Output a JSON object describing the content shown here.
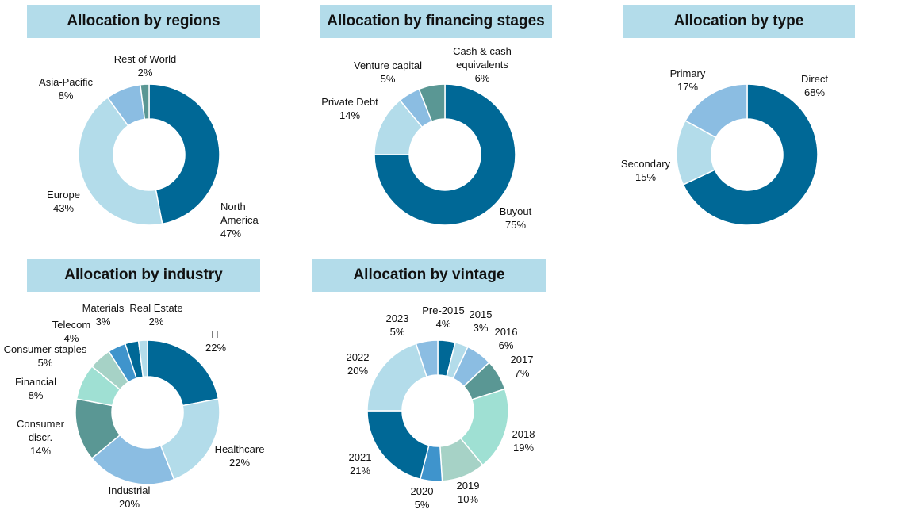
{
  "colors": {
    "dark_blue": "#006896",
    "light_blue": "#b3dcea",
    "mid_blue": "#8bbde2",
    "teal": "#5a9794",
    "mint": "#9fe0d3",
    "sage": "#a6d2c6",
    "bright_blue": "#3f94cc",
    "title_bg": "#b3dcea"
  },
  "chart_data": [
    {
      "type": "pie",
      "title": "Allocation by regions",
      "slices": [
        {
          "name": "North America",
          "lines": [
            "North",
            "America"
          ],
          "value": 47,
          "label": "47%",
          "color": "#006896"
        },
        {
          "name": "Europe",
          "lines": [
            "Europe"
          ],
          "value": 43,
          "label": "43%",
          "color": "#b3dcea"
        },
        {
          "name": "Asia-Pacific",
          "lines": [
            "Asia-Pacific"
          ],
          "value": 8,
          "label": "8%",
          "color": "#8bbde2"
        },
        {
          "name": "Rest of World",
          "lines": [
            "Rest of World"
          ],
          "value": 2,
          "label": "2%",
          "color": "#5a9794"
        }
      ]
    },
    {
      "type": "pie",
      "title": "Allocation by financing stages",
      "slices": [
        {
          "name": "Buyout",
          "lines": [
            "Buyout"
          ],
          "value": 75,
          "label": "75%",
          "color": "#006896"
        },
        {
          "name": "Private Debt",
          "lines": [
            "Private Debt"
          ],
          "value": 14,
          "label": "14%",
          "color": "#b3dcea"
        },
        {
          "name": "Venture capital",
          "lines": [
            "Venture capital"
          ],
          "value": 5,
          "label": "5%",
          "color": "#8bbde2"
        },
        {
          "name": "Cash & cash equivalents",
          "lines": [
            "Cash & cash",
            "equivalents"
          ],
          "value": 6,
          "label": "6%",
          "color": "#5a9794"
        }
      ]
    },
    {
      "type": "pie",
      "title": "Allocation by type",
      "slices": [
        {
          "name": "Direct",
          "lines": [
            "Direct"
          ],
          "value": 68,
          "label": "68%",
          "color": "#006896"
        },
        {
          "name": "Secondary",
          "lines": [
            "Secondary"
          ],
          "value": 15,
          "label": "15%",
          "color": "#b3dcea"
        },
        {
          "name": "Primary",
          "lines": [
            "Primary"
          ],
          "value": 17,
          "label": "17%",
          "color": "#8bbde2"
        }
      ]
    },
    {
      "type": "pie",
      "title": "Allocation by industry",
      "slices": [
        {
          "name": "IT",
          "lines": [
            "IT"
          ],
          "value": 22,
          "label": "22%",
          "color": "#006896"
        },
        {
          "name": "Healthcare",
          "lines": [
            "Healthcare"
          ],
          "value": 22,
          "label": "22%",
          "color": "#b3dcea"
        },
        {
          "name": "Industrial",
          "lines": [
            "Industrial"
          ],
          "value": 20,
          "label": "20%",
          "color": "#8bbde2"
        },
        {
          "name": "Consumer discr.",
          "lines": [
            "Consumer",
            "discr."
          ],
          "value": 14,
          "label": "14%",
          "color": "#5a9794"
        },
        {
          "name": "Financial",
          "lines": [
            "Financial"
          ],
          "value": 8,
          "label": "8%",
          "color": "#9fe0d3"
        },
        {
          "name": "Consumer staples",
          "lines": [
            "Consumer staples"
          ],
          "value": 5,
          "label": "5%",
          "color": "#a6d2c6"
        },
        {
          "name": "Telecom",
          "lines": [
            "Telecom"
          ],
          "value": 4,
          "label": "4%",
          "color": "#3f94cc"
        },
        {
          "name": "Materials",
          "lines": [
            "Materials"
          ],
          "value": 3,
          "label": "3%",
          "color": "#006896"
        },
        {
          "name": "Real Estate",
          "lines": [
            "Real Estate"
          ],
          "value": 2,
          "label": "2%",
          "color": "#b3dcea"
        }
      ]
    },
    {
      "type": "pie",
      "title": "Allocation by vintage",
      "slices": [
        {
          "name": "Pre-2015",
          "lines": [
            "Pre-2015"
          ],
          "value": 4,
          "label": "4%",
          "color": "#006896"
        },
        {
          "name": "2015",
          "lines": [
            "2015"
          ],
          "value": 3,
          "label": "3%",
          "color": "#b3dcea"
        },
        {
          "name": "2016",
          "lines": [
            "2016"
          ],
          "value": 6,
          "label": "6%",
          "color": "#8bbde2"
        },
        {
          "name": "2017",
          "lines": [
            "2017"
          ],
          "value": 7,
          "label": "7%",
          "color": "#5a9794"
        },
        {
          "name": "2018",
          "lines": [
            "2018"
          ],
          "value": 19,
          "label": "19%",
          "color": "#9fe0d3"
        },
        {
          "name": "2019",
          "lines": [
            "2019"
          ],
          "value": 10,
          "label": "10%",
          "color": "#a6d2c6"
        },
        {
          "name": "2020",
          "lines": [
            "2020"
          ],
          "value": 5,
          "label": "5%",
          "color": "#3f94cc"
        },
        {
          "name": "2021",
          "lines": [
            "2021"
          ],
          "value": 21,
          "label": "21%",
          "color": "#006896"
        },
        {
          "name": "2022",
          "lines": [
            "2022"
          ],
          "value": 20,
          "label": "20%",
          "color": "#b3dcea"
        },
        {
          "name": "2023",
          "lines": [
            "2023"
          ],
          "value": 5,
          "label": "5%",
          "color": "#8bbde2"
        }
      ]
    }
  ]
}
